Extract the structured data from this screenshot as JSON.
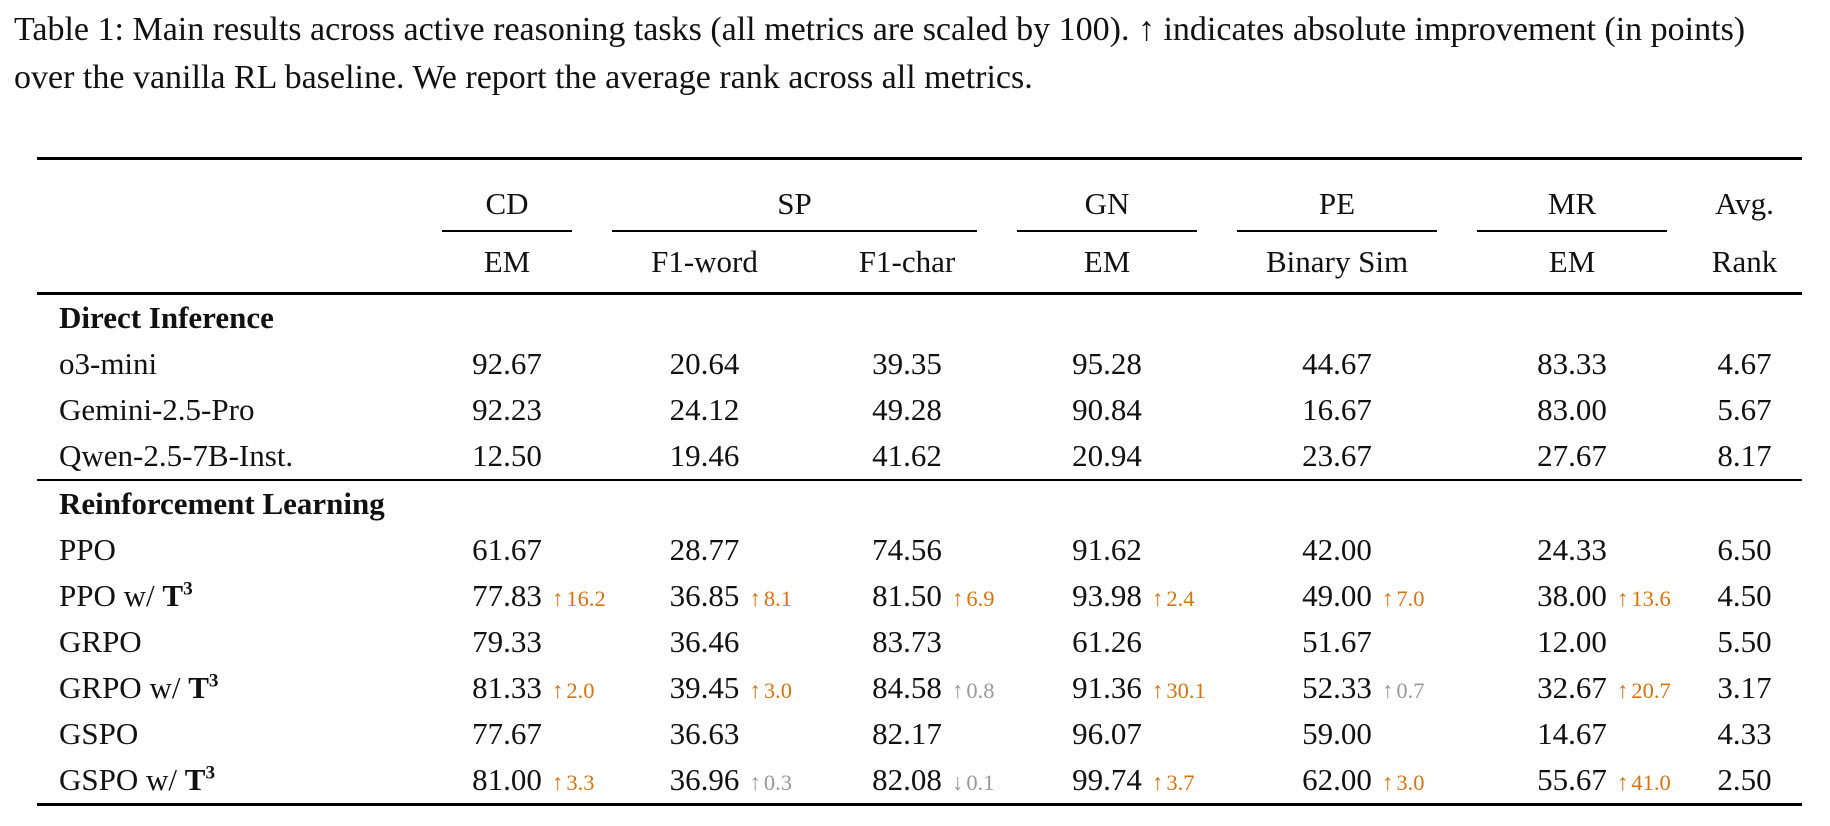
{
  "caption": "Table 1: Main results across active reasoning tasks (all metrics are scaled by 100). ↑ indicates absolute improvement (in points) over the vanilla RL baseline. We report the average rank across all metrics.",
  "colors": {
    "text": "#111111",
    "delta_strong": "#D9730F",
    "delta_weak": "#999999"
  },
  "table": {
    "column_groups": [
      {
        "label": "CD",
        "span": 1,
        "rule": true
      },
      {
        "label": "SP",
        "span": 2,
        "rule": true
      },
      {
        "label": "GN",
        "span": 1,
        "rule": true
      },
      {
        "label": "PE",
        "span": 1,
        "rule": true
      },
      {
        "label": "MR",
        "span": 1,
        "rule": true
      },
      {
        "label": "Avg.",
        "span": 1,
        "rule": false
      }
    ],
    "subheaders": [
      "EM",
      "F1-word",
      "F1-char",
      "EM",
      "Binary Sim",
      "EM",
      "Rank"
    ],
    "sections": [
      {
        "title": "Direct Inference",
        "rows": [
          {
            "model": "o3-mini",
            "suffix": null,
            "cells": [
              {
                "value": "92.67"
              },
              {
                "value": "20.64"
              },
              {
                "value": "39.35"
              },
              {
                "value": "95.28"
              },
              {
                "value": "44.67"
              },
              {
                "value": "83.33"
              },
              {
                "value": "4.67"
              }
            ]
          },
          {
            "model": "Gemini-2.5-Pro",
            "suffix": null,
            "cells": [
              {
                "value": "92.23"
              },
              {
                "value": "24.12"
              },
              {
                "value": "49.28"
              },
              {
                "value": "90.84"
              },
              {
                "value": "16.67"
              },
              {
                "value": "83.00"
              },
              {
                "value": "5.67"
              }
            ]
          },
          {
            "model": "Qwen-2.5-7B-Inst.",
            "suffix": null,
            "cells": [
              {
                "value": "12.50"
              },
              {
                "value": "19.46"
              },
              {
                "value": "41.62"
              },
              {
                "value": "20.94"
              },
              {
                "value": "23.67"
              },
              {
                "value": "27.67"
              },
              {
                "value": "8.17"
              }
            ]
          }
        ]
      },
      {
        "title": "Reinforcement Learning",
        "rows": [
          {
            "model": "PPO",
            "suffix": null,
            "cells": [
              {
                "value": "61.67"
              },
              {
                "value": "28.77"
              },
              {
                "value": "74.56"
              },
              {
                "value": "91.62"
              },
              {
                "value": "42.00"
              },
              {
                "value": "24.33"
              },
              {
                "value": "6.50"
              }
            ]
          },
          {
            "model": "PPO w/",
            "suffix": {
              "text": "T",
              "sup": "3"
            },
            "cells": [
              {
                "value": "77.83",
                "delta": {
                  "arrow": "↑",
                  "amount": "16.2",
                  "tone": "strong"
                }
              },
              {
                "value": "36.85",
                "delta": {
                  "arrow": "↑",
                  "amount": "8.1",
                  "tone": "strong"
                }
              },
              {
                "value": "81.50",
                "delta": {
                  "arrow": "↑",
                  "amount": "6.9",
                  "tone": "strong"
                }
              },
              {
                "value": "93.98",
                "delta": {
                  "arrow": "↑",
                  "amount": "2.4",
                  "tone": "strong"
                }
              },
              {
                "value": "49.00",
                "delta": {
                  "arrow": "↑",
                  "amount": "7.0",
                  "tone": "strong"
                }
              },
              {
                "value": "38.00",
                "delta": {
                  "arrow": "↑",
                  "amount": "13.6",
                  "tone": "strong"
                }
              },
              {
                "value": "4.50"
              }
            ]
          },
          {
            "model": "GRPO",
            "suffix": null,
            "cells": [
              {
                "value": "79.33"
              },
              {
                "value": "36.46"
              },
              {
                "value": "83.73"
              },
              {
                "value": "61.26"
              },
              {
                "value": "51.67"
              },
              {
                "value": "12.00"
              },
              {
                "value": "5.50"
              }
            ]
          },
          {
            "model": "GRPO w/",
            "suffix": {
              "text": "T",
              "sup": "3"
            },
            "cells": [
              {
                "value": "81.33",
                "delta": {
                  "arrow": "↑",
                  "amount": "2.0",
                  "tone": "strong"
                }
              },
              {
                "value": "39.45",
                "delta": {
                  "arrow": "↑",
                  "amount": "3.0",
                  "tone": "strong"
                }
              },
              {
                "value": "84.58",
                "delta": {
                  "arrow": "↑",
                  "amount": "0.8",
                  "tone": "weak"
                }
              },
              {
                "value": "91.36",
                "delta": {
                  "arrow": "↑",
                  "amount": "30.1",
                  "tone": "strong"
                }
              },
              {
                "value": "52.33",
                "delta": {
                  "arrow": "↑",
                  "amount": "0.7",
                  "tone": "weak"
                }
              },
              {
                "value": "32.67",
                "delta": {
                  "arrow": "↑",
                  "amount": "20.7",
                  "tone": "strong"
                }
              },
              {
                "value": "3.17"
              }
            ]
          },
          {
            "model": "GSPO",
            "suffix": null,
            "cells": [
              {
                "value": "77.67"
              },
              {
                "value": "36.63"
              },
              {
                "value": "82.17"
              },
              {
                "value": "96.07"
              },
              {
                "value": "59.00"
              },
              {
                "value": "14.67"
              },
              {
                "value": "4.33"
              }
            ]
          },
          {
            "model": "GSPO w/",
            "suffix": {
              "text": "T",
              "sup": "3"
            },
            "cells": [
              {
                "value": "81.00",
                "delta": {
                  "arrow": "↑",
                  "amount": "3.3",
                  "tone": "strong"
                }
              },
              {
                "value": "36.96",
                "delta": {
                  "arrow": "↑",
                  "amount": "0.3",
                  "tone": "weak"
                }
              },
              {
                "value": "82.08",
                "delta": {
                  "arrow": "↓",
                  "amount": "0.1",
                  "tone": "weak"
                }
              },
              {
                "value": "99.74",
                "delta": {
                  "arrow": "↑",
                  "amount": "3.7",
                  "tone": "strong"
                }
              },
              {
                "value": "62.00",
                "delta": {
                  "arrow": "↑",
                  "amount": "3.0",
                  "tone": "strong"
                }
              },
              {
                "value": "55.67",
                "delta": {
                  "arrow": "↑",
                  "amount": "41.0",
                  "tone": "strong"
                }
              },
              {
                "value": "2.50"
              }
            ]
          }
        ]
      }
    ]
  }
}
